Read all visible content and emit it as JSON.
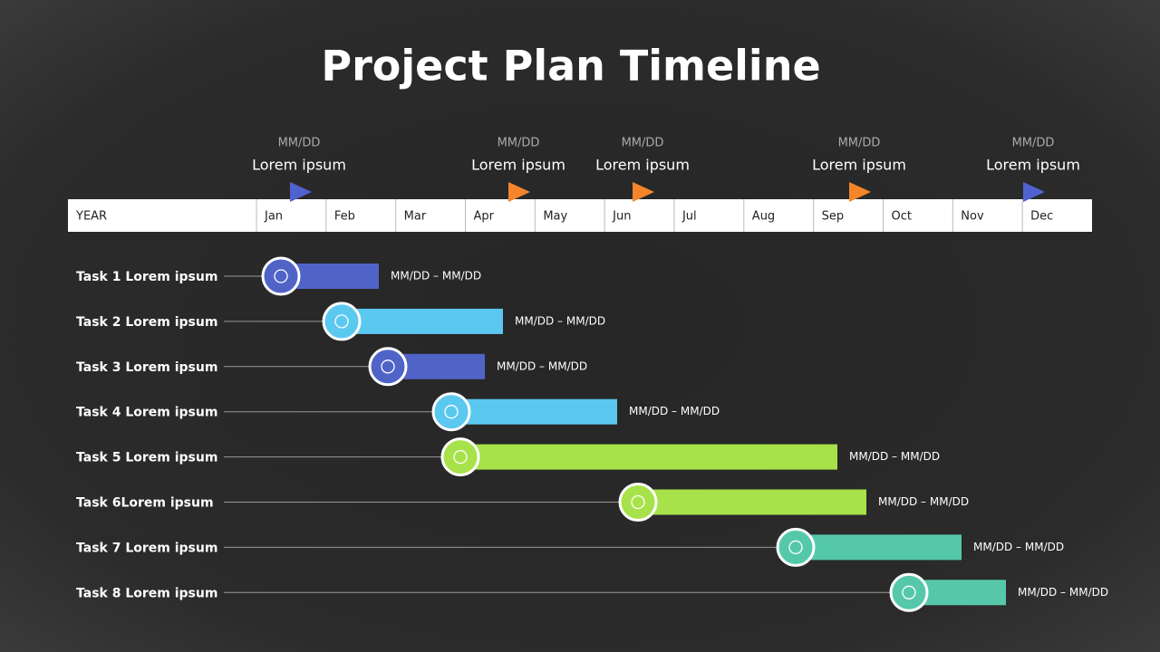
{
  "title": "Project Plan Timeline",
  "header": [
    "YEAR",
    "Jan",
    "Feb",
    "Mar",
    "Apr",
    "May",
    "Jun",
    "Jul",
    "Aug",
    "Sep",
    "Oct",
    "Nov",
    "Dec"
  ],
  "milestones": [
    {
      "date": "MM/DD",
      "label": "Lorem ipsum"
    },
    {
      "date": "MM/DD",
      "label": "Lorem ipsum"
    },
    {
      "date": "MM/DD",
      "label": "Lorem ipsum"
    },
    {
      "date": "MM/DD",
      "label": "Lorem ipsum"
    },
    {
      "date": "MM/DD",
      "label": "Lorem ipsum"
    }
  ],
  "tasks": [
    {
      "label": "Task 1 Lorem ipsum",
      "dates": "MM/DD – MM/DD"
    },
    {
      "label": "Task 2 Lorem ipsum",
      "dates": "MM/DD – MM/DD"
    },
    {
      "label": "Task 3 Lorem ipsum",
      "dates": "MM/DD – MM/DD"
    },
    {
      "label": "Task 4 Lorem ipsum",
      "dates": "MM/DD – MM/DD"
    },
    {
      "label": "Task 5 Lorem ipsum",
      "dates": "MM/DD – MM/DD"
    },
    {
      "label": "Task 6Lorem ipsum",
      "dates": "MM/DD – MM/DD"
    },
    {
      "label": "Task 7 Lorem ipsum",
      "dates": "MM/DD – MM/DD"
    },
    {
      "label": "Task 8 Lorem ipsum",
      "dates": "MM/DD – MM/DD"
    }
  ]
}
